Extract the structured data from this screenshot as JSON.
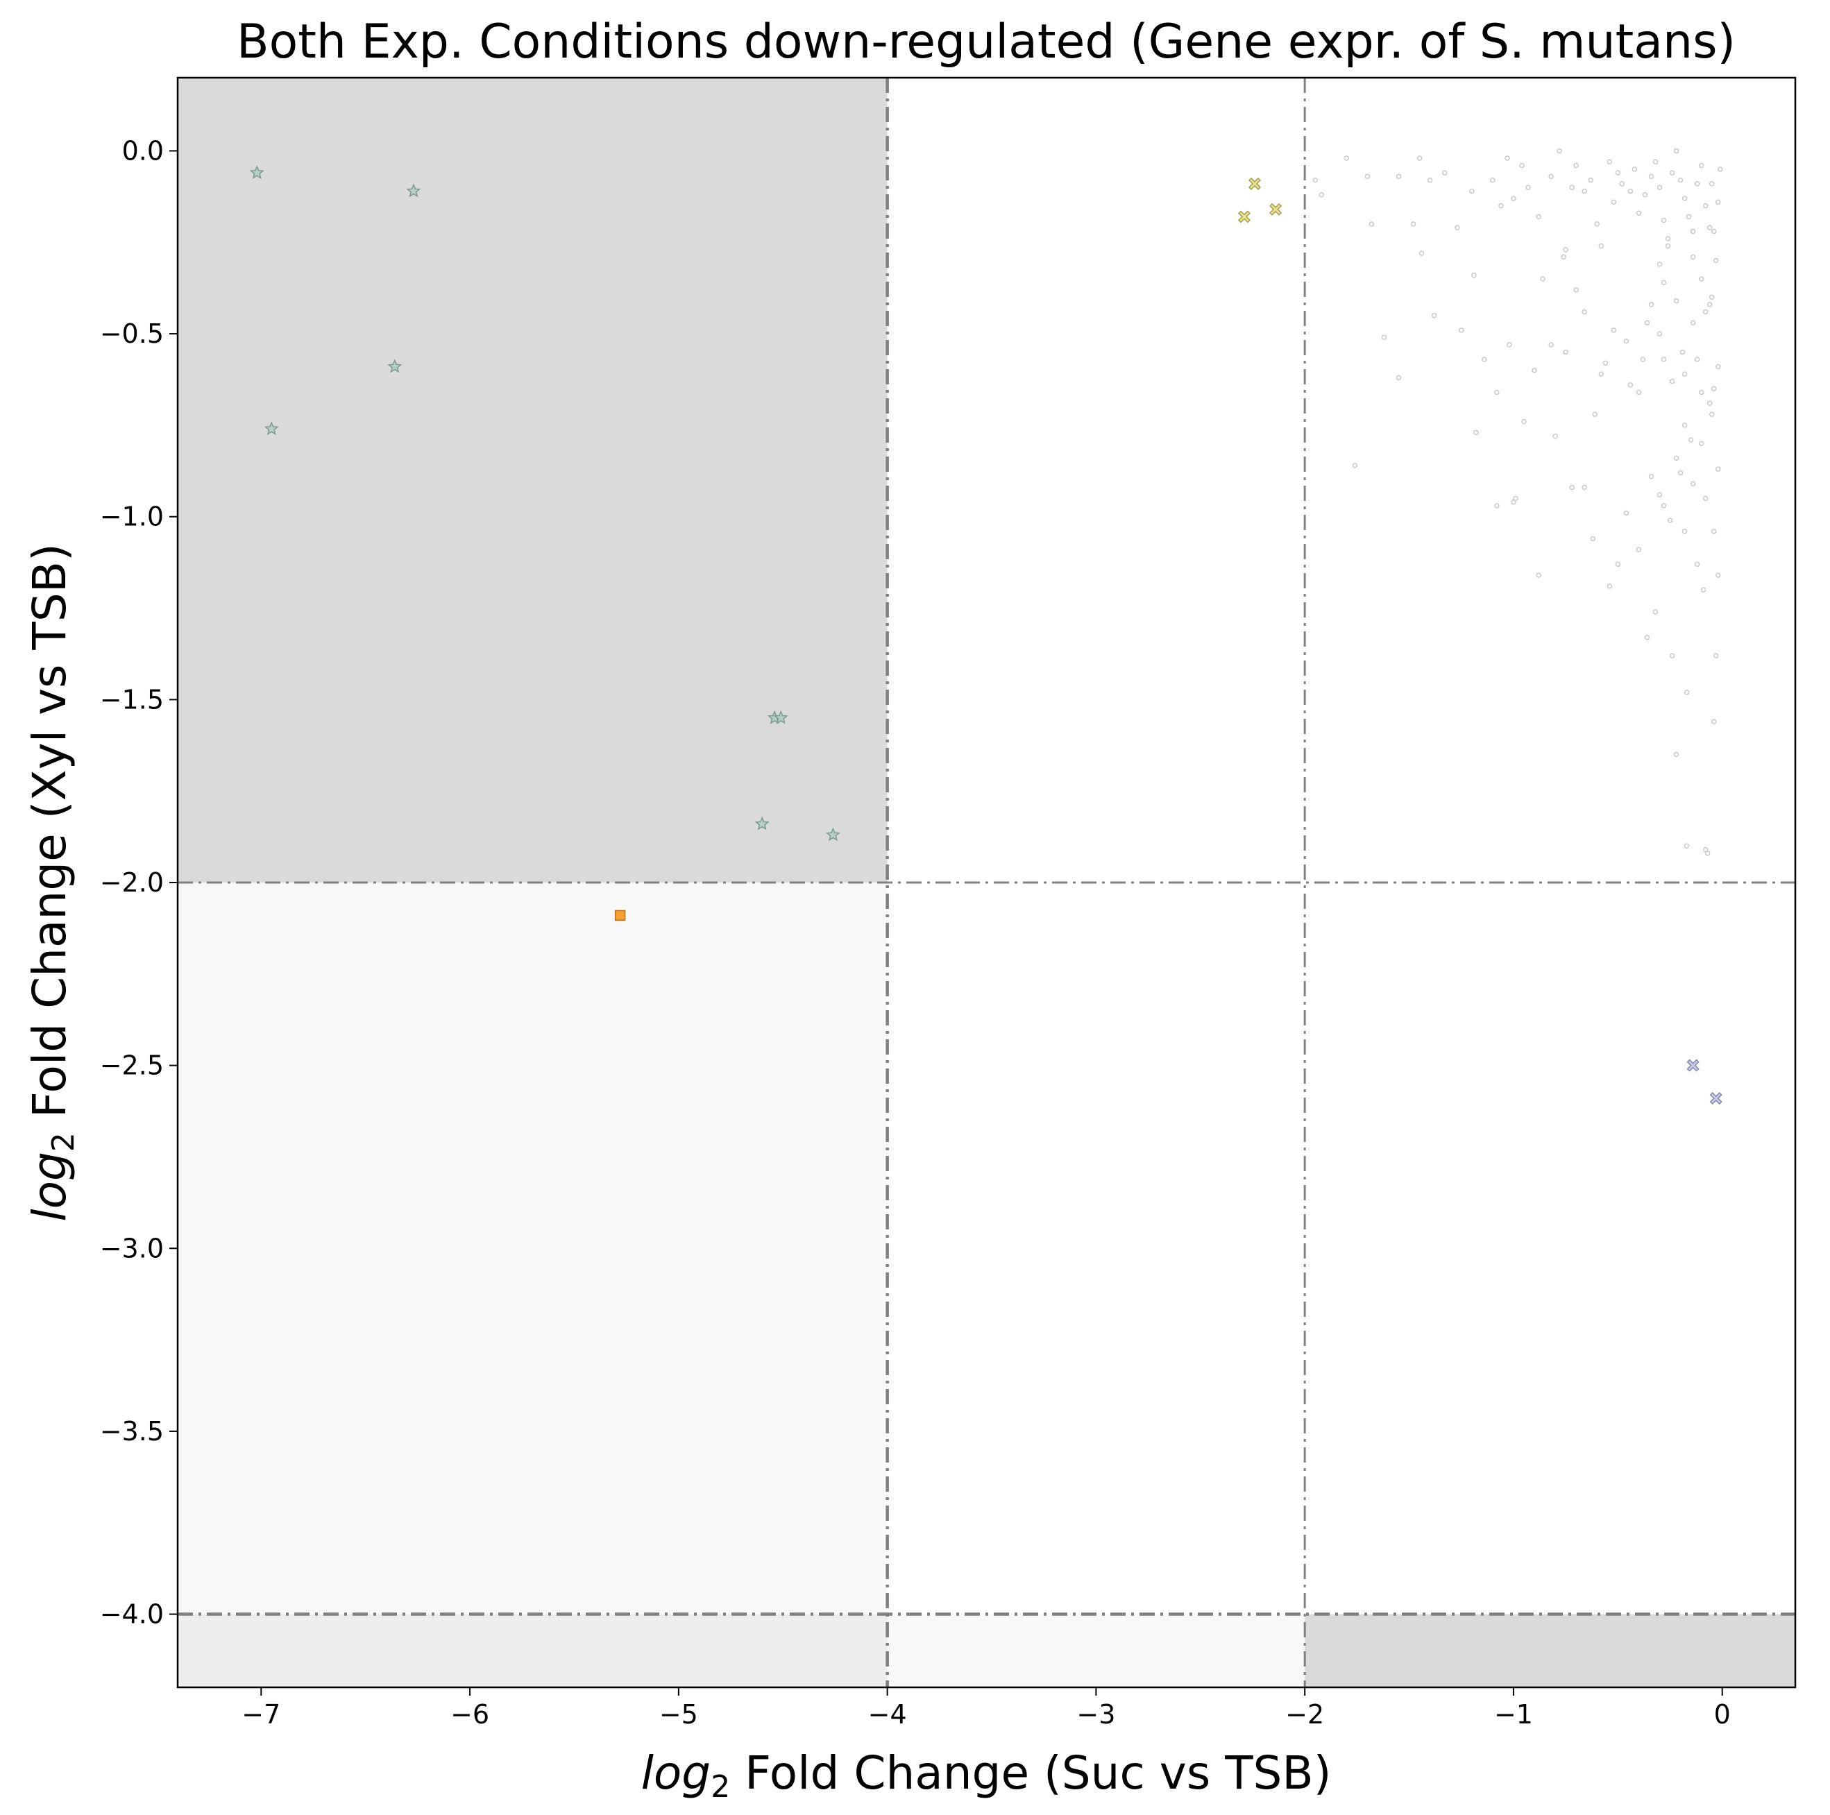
{
  "chart_data": {
    "type": "scatter",
    "title": "Both Exp. Conditions down-regulated (Gene expr. of S. mutans)",
    "xlabel_prefix": "log",
    "xlabel_sub": "2",
    "xlabel_rest": " Fold Change (Suc vs TSB)",
    "ylabel_prefix": "log",
    "ylabel_sub": "2",
    "ylabel_rest": " Fold Change (Xyl vs TSB)",
    "xlim": [
      -7.4,
      0.35
    ],
    "ylim": [
      -4.2,
      0.2
    ],
    "xticks": [
      -7,
      -6,
      -5,
      -4,
      -3,
      -2,
      -1,
      0
    ],
    "xtick_labels": [
      "−7",
      "−6",
      "−5",
      "−4",
      "−3",
      "−2",
      "−1",
      "0"
    ],
    "yticks": [
      0.0,
      -0.5,
      -1.0,
      -1.5,
      -2.0,
      -2.5,
      -3.0,
      -3.5,
      -4.0
    ],
    "ytick_labels": [
      "0.0",
      "−0.5",
      "−1.0",
      "−1.5",
      "−2.0",
      "−2.5",
      "−3.0",
      "−3.5",
      "−4.0"
    ],
    "grid": false,
    "regions": [
      {
        "x": [
          -7.4,
          -4
        ],
        "y": [
          -2,
          0.2
        ],
        "color": "#dadada"
      },
      {
        "x": [
          -7.4,
          -4
        ],
        "y": [
          -4,
          -2
        ],
        "color": "#f8f8f8"
      },
      {
        "x": [
          -4,
          -2
        ],
        "y": [
          -4.2,
          -4
        ],
        "color": "#f8f8f8"
      },
      {
        "x": [
          -7.4,
          -4
        ],
        "y": [
          -4.2,
          -4
        ],
        "color": "#eeeeee"
      },
      {
        "x": [
          -2,
          0.35
        ],
        "y": [
          -4.2,
          -4
        ],
        "color": "#dadada"
      }
    ],
    "thresholds": {
      "vertical": [
        -4,
        -2
      ],
      "horizontal": [
        -2,
        -4
      ]
    },
    "series": [
      {
        "marker": "star",
        "color": "#b5cfc8",
        "edge": "#7a9a90",
        "points": [
          [
            -7.02,
            -0.06
          ],
          [
            -6.27,
            -0.11
          ],
          [
            -6.36,
            -0.59
          ],
          [
            -6.95,
            -0.76
          ],
          [
            -4.54,
            -1.55
          ],
          [
            -4.51,
            -1.55
          ],
          [
            -4.6,
            -1.84
          ],
          [
            -4.26,
            -1.87
          ]
        ]
      },
      {
        "marker": "square",
        "color": "#f5a030",
        "edge": "#c07010",
        "points": [
          [
            -5.28,
            -2.09
          ]
        ]
      },
      {
        "marker": "x",
        "color": "#e8e090",
        "edge": "#a8a050",
        "points": [
          [
            -2.24,
            -0.09
          ],
          [
            -2.29,
            -0.18
          ],
          [
            -2.14,
            -0.16
          ]
        ]
      },
      {
        "marker": "x",
        "color": "#c8c8e8",
        "edge": "#8888a8",
        "points": [
          [
            -0.14,
            -2.5
          ],
          [
            -0.03,
            -2.59
          ]
        ]
      },
      {
        "marker": "circle",
        "color": "#ffffff",
        "edge": "#c8c8c8",
        "points": [
          [
            -1.95,
            -0.08
          ],
          [
            -1.92,
            -0.12
          ],
          [
            -1.8,
            -0.02
          ],
          [
            -1.7,
            -0.07
          ],
          [
            -1.68,
            -0.2
          ],
          [
            -1.55,
            -0.07
          ],
          [
            -1.48,
            -0.2
          ],
          [
            -1.45,
            -0.02
          ],
          [
            -1.44,
            -0.28
          ],
          [
            -1.4,
            -0.08
          ],
          [
            -1.33,
            -0.06
          ],
          [
            -1.27,
            -0.21
          ],
          [
            -1.2,
            -0.11
          ],
          [
            -1.19,
            -0.34
          ],
          [
            -1.1,
            -0.08
          ],
          [
            -1.06,
            -0.15
          ],
          [
            -1.03,
            -0.02
          ],
          [
            -1.0,
            -0.13
          ],
          [
            -0.96,
            -0.04
          ],
          [
            -0.93,
            -0.1
          ],
          [
            -0.88,
            -0.18
          ],
          [
            -0.82,
            -0.07
          ],
          [
            -0.78,
            -0.0
          ],
          [
            -0.75,
            -0.27
          ],
          [
            -0.72,
            -0.1
          ],
          [
            -0.7,
            -0.04
          ],
          [
            -0.66,
            -0.11
          ],
          [
            -0.63,
            -0.08
          ],
          [
            -0.6,
            -0.2
          ],
          [
            -0.58,
            -0.26
          ],
          [
            -0.54,
            -0.03
          ],
          [
            -0.52,
            -0.14
          ],
          [
            -0.5,
            -0.06
          ],
          [
            -0.48,
            -0.09
          ],
          [
            -0.44,
            -0.11
          ],
          [
            -0.42,
            -0.05
          ],
          [
            -0.4,
            -0.17
          ],
          [
            -0.37,
            -0.12
          ],
          [
            -0.34,
            -0.07
          ],
          [
            -0.32,
            -0.03
          ],
          [
            -0.3,
            -0.1
          ],
          [
            -0.28,
            -0.19
          ],
          [
            -0.26,
            -0.24
          ],
          [
            -0.24,
            -0.06
          ],
          [
            -0.22,
            -0.0
          ],
          [
            -0.2,
            -0.08
          ],
          [
            -0.18,
            -0.13
          ],
          [
            -0.16,
            -0.18
          ],
          [
            -0.14,
            -0.22
          ],
          [
            -0.12,
            -0.09
          ],
          [
            -0.1,
            -0.04
          ],
          [
            -0.08,
            -0.15
          ],
          [
            -0.06,
            -0.21
          ],
          [
            -0.05,
            -0.09
          ],
          [
            -0.03,
            -0.3
          ],
          [
            -0.02,
            -0.14
          ],
          [
            -0.01,
            -0.05
          ],
          [
            -0.06,
            -0.42
          ],
          [
            -0.1,
            -0.35
          ],
          [
            -0.14,
            -0.47
          ],
          [
            -0.19,
            -0.55
          ],
          [
            -0.24,
            -0.63
          ],
          [
            -0.3,
            -0.5
          ],
          [
            -0.34,
            -0.42
          ],
          [
            -0.38,
            -0.57
          ],
          [
            -0.44,
            -0.64
          ],
          [
            -0.52,
            -0.49
          ],
          [
            -0.56,
            -0.58
          ],
          [
            -0.61,
            -0.72
          ],
          [
            -0.66,
            -0.44
          ],
          [
            -0.7,
            -0.38
          ],
          [
            -0.76,
            -0.29
          ],
          [
            -0.82,
            -0.53
          ],
          [
            -0.86,
            -0.35
          ],
          [
            -0.9,
            -0.6
          ],
          [
            -0.95,
            -0.74
          ],
          [
            -1.02,
            -0.53
          ],
          [
            -1.08,
            -0.66
          ],
          [
            -1.14,
            -0.57
          ],
          [
            -1.25,
            -0.49
          ],
          [
            -1.38,
            -0.45
          ],
          [
            -1.55,
            -0.62
          ],
          [
            -1.62,
            -0.51
          ],
          [
            -1.76,
            -0.86
          ],
          [
            -1.18,
            -0.77
          ],
          [
            -0.8,
            -0.78
          ],
          [
            -0.72,
            -0.92
          ],
          [
            -0.62,
            -1.06
          ],
          [
            -0.54,
            -1.19
          ],
          [
            -0.5,
            -1.13
          ],
          [
            -0.46,
            -0.99
          ],
          [
            -0.4,
            -1.09
          ],
          [
            -0.34,
            -0.89
          ],
          [
            -0.3,
            -0.94
          ],
          [
            -0.25,
            -1.01
          ],
          [
            -0.2,
            -0.88
          ],
          [
            -0.15,
            -0.79
          ],
          [
            -0.12,
            -1.13
          ],
          [
            -0.08,
            -0.95
          ],
          [
            -0.05,
            -0.72
          ],
          [
            -0.02,
            -0.87
          ],
          [
            -0.02,
            -1.16
          ],
          [
            -0.04,
            -1.04
          ],
          [
            -0.06,
            -0.69
          ],
          [
            -0.1,
            -0.66
          ],
          [
            -0.18,
            -0.75
          ],
          [
            -0.22,
            -0.84
          ],
          [
            -0.28,
            -0.97
          ],
          [
            -0.32,
            -1.26
          ],
          [
            -0.36,
            -1.33
          ],
          [
            -0.24,
            -1.38
          ],
          [
            -0.17,
            -1.48
          ],
          [
            -0.22,
            -1.65
          ],
          [
            -0.04,
            -1.56
          ],
          [
            -0.03,
            -1.38
          ],
          [
            -0.08,
            -1.91
          ],
          [
            -0.17,
            -1.9
          ],
          [
            -0.07,
            -1.92
          ],
          [
            -0.09,
            -1.2
          ],
          [
            -0.18,
            -1.04
          ],
          [
            -1.08,
            -0.97
          ],
          [
            -1.0,
            -0.96
          ],
          [
            -0.99,
            -0.95
          ],
          [
            -0.88,
            -1.16
          ],
          [
            -0.75,
            -0.55
          ],
          [
            -0.66,
            -0.92
          ],
          [
            -0.58,
            -0.61
          ],
          [
            -0.46,
            -0.52
          ],
          [
            -0.4,
            -0.66
          ],
          [
            -0.36,
            -0.47
          ],
          [
            -0.28,
            -0.36
          ],
          [
            -0.14,
            -0.29
          ],
          [
            -0.05,
            -0.4
          ],
          [
            -0.02,
            -0.59
          ],
          [
            -0.04,
            -0.65
          ],
          [
            -0.12,
            -0.57
          ],
          [
            -0.18,
            -0.61
          ],
          [
            -0.26,
            -0.26
          ],
          [
            -0.3,
            -0.31
          ],
          [
            -0.22,
            -0.41
          ],
          [
            -0.1,
            -0.8
          ],
          [
            -0.14,
            -0.91
          ],
          [
            -0.28,
            -0.57
          ],
          [
            -0.08,
            -0.44
          ],
          [
            -0.04,
            -0.22
          ]
        ]
      }
    ]
  }
}
